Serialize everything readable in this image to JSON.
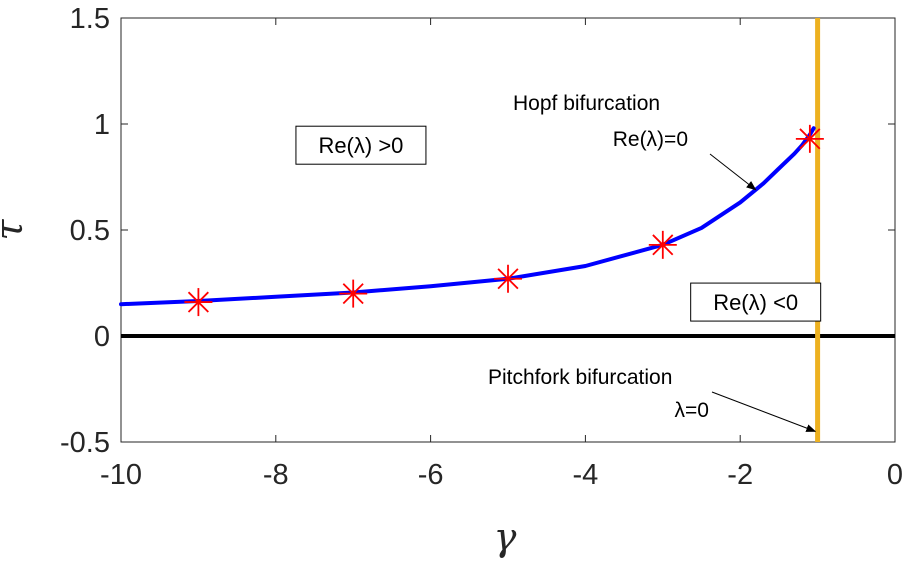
{
  "chart_data": {
    "type": "line",
    "title": "",
    "xlabel": "γ",
    "ylabel": "τ",
    "xlim": [
      -10,
      0
    ],
    "ylim": [
      -0.5,
      1.5
    ],
    "x_ticks": [
      -10,
      -8,
      -6,
      -4,
      -2,
      0
    ],
    "y_ticks": [
      -0.5,
      0,
      0.5,
      1,
      1.5
    ],
    "x_tick_labels": [
      "-10",
      "-8",
      "-6",
      "-4",
      "-2",
      "0"
    ],
    "y_tick_labels": [
      "-0.5",
      "0",
      "0.5",
      "1",
      "1.5"
    ],
    "grid": false,
    "series": [
      {
        "kind": "curve",
        "color": "#0000ff",
        "x": [
          -10,
          -9,
          -8,
          -7,
          -6,
          -5,
          -4,
          -3,
          -2.5,
          -2,
          -1.7,
          -1.5,
          -1.3,
          -1.2,
          -1.1,
          -1.05
        ],
        "y": [
          0.15,
          0.165,
          0.185,
          0.205,
          0.235,
          0.27,
          0.33,
          0.43,
          0.51,
          0.63,
          0.72,
          0.79,
          0.86,
          0.9,
          0.95,
          0.98
        ]
      },
      {
        "kind": "markers",
        "marker": "asterisk",
        "color": "#ff0000",
        "x": [
          -9,
          -7,
          -5,
          -3,
          -1.1
        ],
        "y": [
          0.16,
          0.2,
          0.27,
          0.43,
          0.93
        ]
      },
      {
        "kind": "hline",
        "color": "#000000",
        "y": 0
      },
      {
        "kind": "vline",
        "color": "#edb120",
        "x": -1
      }
    ],
    "region_labels": [
      {
        "text": "Re(λ) >0",
        "x": -6.9,
        "y": 0.9
      },
      {
        "text": "Re(λ) <0",
        "x": -1.8,
        "y": 0.16
      }
    ],
    "annotations": [
      {
        "line1": "Hopf bifurcation",
        "line2": "Re(λ)=0",
        "arrow_to": [
          -1.8,
          0.69
        ]
      },
      {
        "line1": "Pitchfork bifurcation",
        "line2": "λ=0",
        "arrow_to": [
          -1.03,
          -0.45
        ]
      }
    ]
  }
}
